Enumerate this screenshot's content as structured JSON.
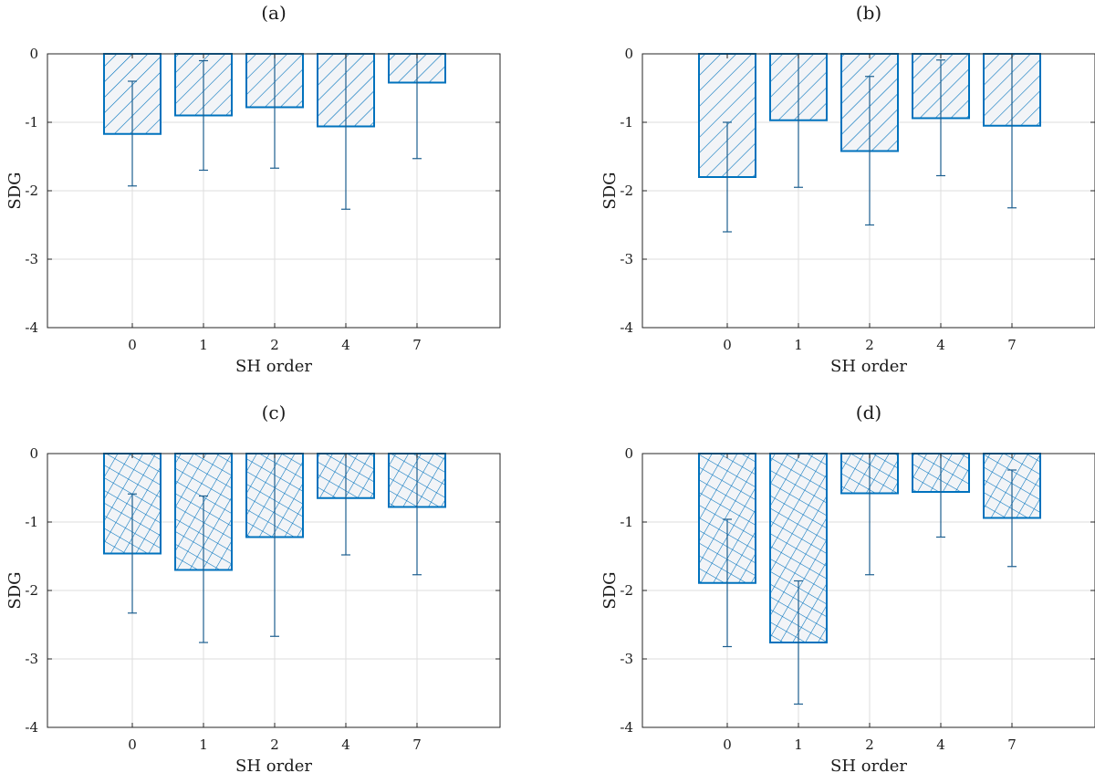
{
  "chart_data": [
    {
      "type": "bar",
      "title": "(a)",
      "xlabel": "SH order",
      "ylabel": "SDG",
      "ylim": [
        -4,
        0
      ],
      "yticks": [
        0,
        -1,
        -2,
        -3,
        -4
      ],
      "ytick_labels": [
        "0",
        "-1",
        "-2",
        "-3",
        "-4"
      ],
      "categories": [
        "0",
        "1",
        "2",
        "4",
        "7"
      ],
      "values": [
        -1.17,
        -0.9,
        -0.78,
        -1.06,
        -0.42
      ],
      "error_low": [
        -1.93,
        -1.7,
        -1.67,
        -2.27,
        -1.53
      ],
      "error_high": [
        -0.4,
        -0.1,
        0.0,
        0.0,
        0.0
      ],
      "grid": true,
      "bar_color": "#0072bd",
      "hatch": "diagonal"
    },
    {
      "type": "bar",
      "title": "(b)",
      "xlabel": "SH order",
      "ylabel": "SDG",
      "ylim": [
        -4,
        0
      ],
      "yticks": [
        0,
        -1,
        -2,
        -3,
        -4
      ],
      "ytick_labels": [
        "0",
        "-1",
        "-2",
        "-3",
        "-4"
      ],
      "categories": [
        "0",
        "1",
        "2",
        "4",
        "7"
      ],
      "values": [
        -1.8,
        -0.97,
        -1.42,
        -0.94,
        -1.05
      ],
      "error_low": [
        -2.6,
        -1.95,
        -2.5,
        -1.78,
        -2.25
      ],
      "error_high": [
        -1.0,
        0.0,
        -0.33,
        -0.09,
        0.0
      ],
      "grid": true,
      "bar_color": "#0072bd",
      "hatch": "diagonal"
    },
    {
      "type": "bar",
      "title": "(c)",
      "xlabel": "SH order",
      "ylabel": "SDG",
      "ylim": [
        -4,
        0
      ],
      "yticks": [
        0,
        -1,
        -2,
        -3,
        -4
      ],
      "ytick_labels": [
        "0",
        "-1",
        "-2",
        "-3",
        "-4"
      ],
      "categories": [
        "0",
        "1",
        "2",
        "4",
        "7"
      ],
      "values": [
        -1.46,
        -1.7,
        -1.22,
        -0.65,
        -0.78
      ],
      "error_low": [
        -2.33,
        -2.76,
        -2.67,
        -1.48,
        -1.77
      ],
      "error_high": [
        -0.59,
        -0.62,
        0.0,
        0.0,
        0.0
      ],
      "grid": true,
      "bar_color": "#0072bd",
      "hatch": "crosshatch"
    },
    {
      "type": "bar",
      "title": "(d)",
      "xlabel": "SH order",
      "ylabel": "SDG",
      "ylim": [
        -4,
        0
      ],
      "yticks": [
        0,
        -1,
        -2,
        -3,
        -4
      ],
      "ytick_labels": [
        "0",
        "-1",
        "-2",
        "-3",
        "-4"
      ],
      "categories": [
        "0",
        "1",
        "2",
        "4",
        "7"
      ],
      "values": [
        -1.89,
        -2.76,
        -0.58,
        -0.56,
        -0.94
      ],
      "error_low": [
        -2.82,
        -3.66,
        -1.77,
        -1.22,
        -1.65
      ],
      "error_high": [
        -0.96,
        -1.86,
        0.0,
        0.0,
        -0.24
      ],
      "grid": true,
      "bar_color": "#0072bd",
      "hatch": "crosshatch"
    }
  ]
}
